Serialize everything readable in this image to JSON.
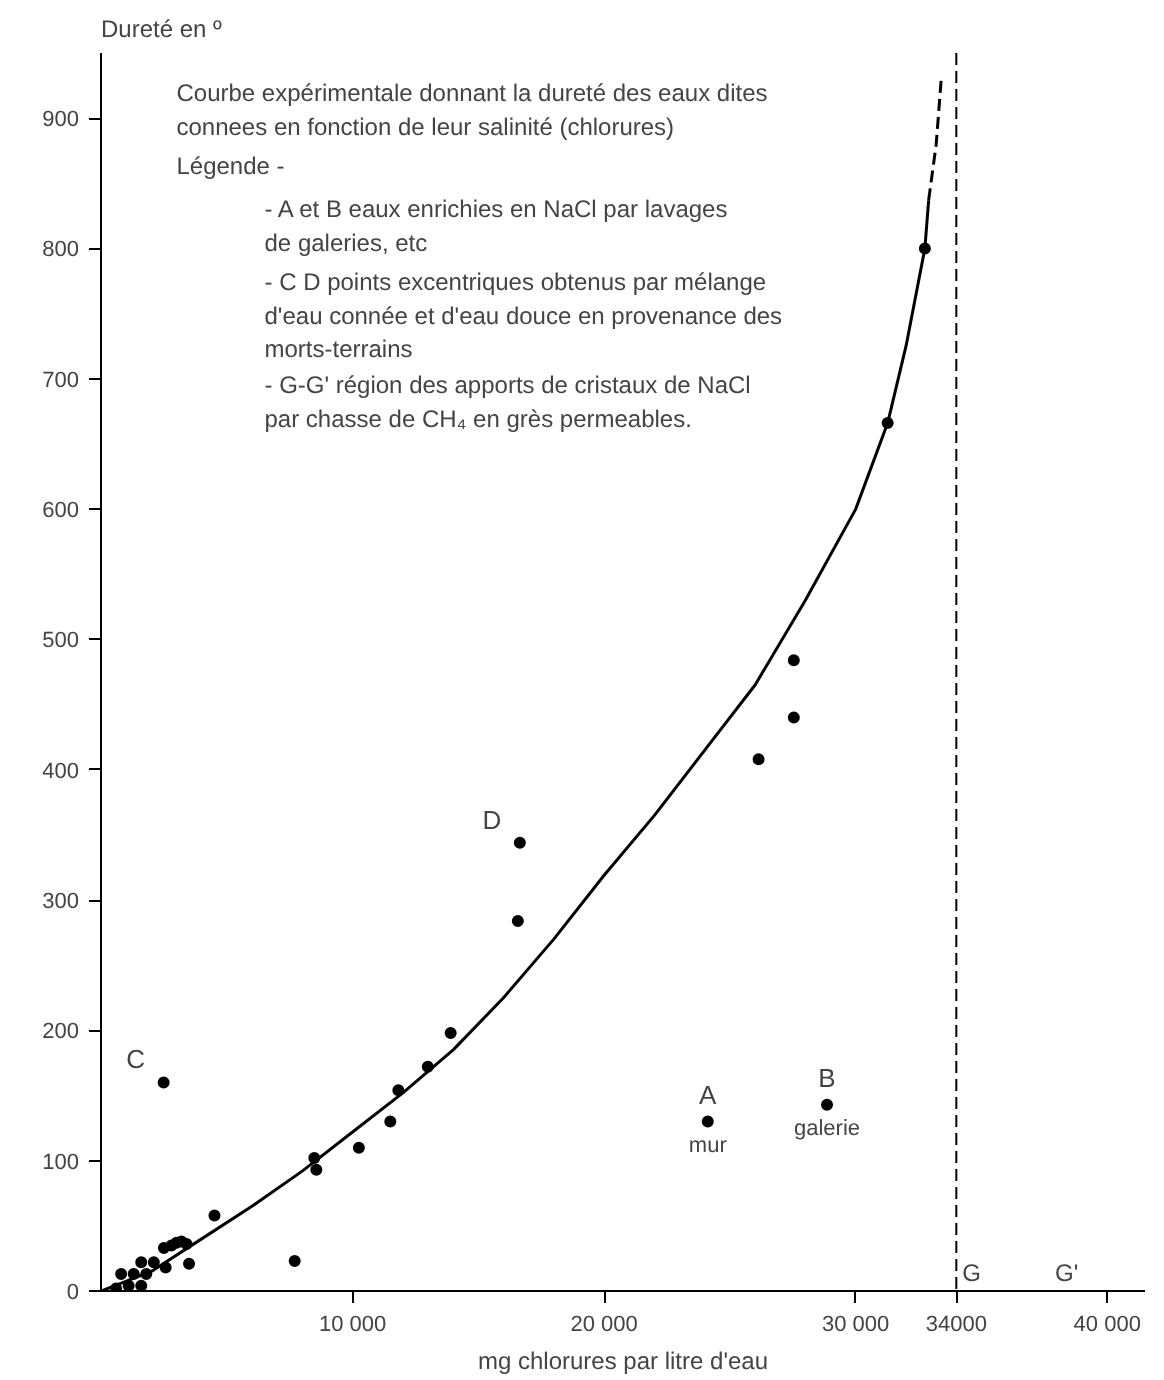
{
  "chart_data": {
    "type": "scatter",
    "title": "Courbe expérimentale donnant la dureté des eaux dites connees en fonction de leur salinité (chlorures)",
    "xlabel": "mg chlorures par litre d'eau",
    "ylabel": "Dureté en º",
    "xlim": [
      0,
      41500
    ],
    "ylim": [
      0,
      950
    ],
    "xticks": [
      {
        "value": 10000,
        "label": "10 000"
      },
      {
        "value": 20000,
        "label": "20 000"
      },
      {
        "value": 30000,
        "label": "30 000"
      },
      34000,
      {
        "value": 40000,
        "label": "40 000"
      }
    ],
    "yticks": [
      0,
      100,
      200,
      300,
      400,
      500,
      600,
      700,
      800,
      900
    ],
    "grid": false,
    "marker": "circle",
    "series": [
      {
        "color": "#000000",
        "x": [
          600,
          800,
          1100,
          1300,
          1600,
          1600,
          1800,
          2100,
          2500,
          2570,
          2800,
          3000,
          3200,
          3400,
          3500,
          4510,
          7700,
          8480,
          8560,
          10250,
          11500,
          11820,
          12990,
          13900,
          16570,
          16650,
          2490,
          24120,
          28860,
          26140,
          27540,
          27540,
          31270,
          32750
        ],
        "values": [
          2,
          13,
          4,
          13,
          4,
          22,
          13,
          22,
          33,
          18,
          35,
          37,
          38,
          36,
          21,
          58,
          23,
          102,
          93,
          110,
          130,
          154,
          172,
          198,
          284,
          344,
          160,
          130,
          143,
          408,
          440,
          484,
          666,
          800
        ]
      },
      {
        "type": "line",
        "marker": "none",
        "color": "#000000",
        "line_style": "solid",
        "x": [
          0,
          2000,
          4000,
          6000,
          8000,
          10000,
          12000,
          14000,
          16000,
          18000,
          20000,
          22000,
          24000,
          26000,
          28000,
          30000,
          31270,
          32000,
          32750,
          32900
        ],
        "values": [
          0,
          15,
          40,
          65,
          92,
          122,
          152,
          185,
          225,
          270,
          319,
          365,
          415,
          465,
          530,
          600,
          666,
          725,
          800,
          837
        ]
      },
      {
        "type": "line",
        "marker": "none",
        "color": "#000000",
        "line_style": "dashed",
        "x": [
          32900,
          33200,
          33400
        ],
        "values": [
          837,
          880,
          930
        ]
      }
    ],
    "ref_lines": [
      {
        "axis": "x",
        "value": 34000,
        "label": "G",
        "line_style": "dashed",
        "color": "#000000"
      }
    ],
    "annotations": [
      "Légende -",
      "- A et B eaux enrichies en NaCl par lavages de galeries, etc",
      "- C D points excentriques obtenus par mélange d'eau connée et d'eau douce en provenance des morts-terrains",
      "- G-G' région des apports de cristaux de NaCl par chasse de CH₄ en grès permeables.",
      {
        "text": "C",
        "x": 2490,
        "y": 160
      },
      {
        "text": "D",
        "x": 16650,
        "y": 344
      },
      {
        "text": "A",
        "x": 24120,
        "y": 130
      },
      {
        "text": "mur",
        "x": 24120,
        "y": 130
      },
      {
        "text": "B",
        "x": 28860,
        "y": 143
      },
      {
        "text": "galerie",
        "x": 28860,
        "y": 143
      },
      "G'"
    ]
  }
}
